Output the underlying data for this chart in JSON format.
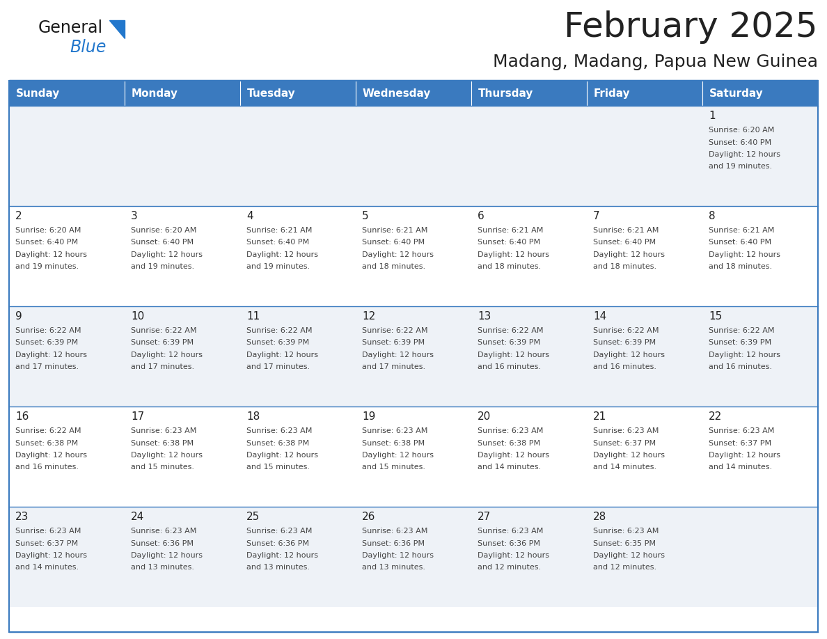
{
  "title": "February 2025",
  "subtitle": "Madang, Madang, Papua New Guinea",
  "header_bg": "#3a7abf",
  "header_text_color": "#ffffff",
  "days_of_week": [
    "Sunday",
    "Monday",
    "Tuesday",
    "Wednesday",
    "Thursday",
    "Friday",
    "Saturday"
  ],
  "row_bg_colors": [
    "#eef2f7",
    "#ffffff",
    "#eef2f7",
    "#ffffff",
    "#eef2f7"
  ],
  "border_color": "#3a7abf",
  "text_color": "#222222",
  "cell_text_color": "#444444",
  "title_fontsize": 36,
  "subtitle_fontsize": 18,
  "header_fontsize": 11,
  "day_num_fontsize": 11,
  "cell_text_fontsize": 8,
  "calendar_data": [
    [
      {
        "day": null,
        "text": ""
      },
      {
        "day": null,
        "text": ""
      },
      {
        "day": null,
        "text": ""
      },
      {
        "day": null,
        "text": ""
      },
      {
        "day": null,
        "text": ""
      },
      {
        "day": null,
        "text": ""
      },
      {
        "day": 1,
        "text": "Sunrise: 6:20 AM\nSunset: 6:40 PM\nDaylight: 12 hours\nand 19 minutes."
      }
    ],
    [
      {
        "day": 2,
        "text": "Sunrise: 6:20 AM\nSunset: 6:40 PM\nDaylight: 12 hours\nand 19 minutes."
      },
      {
        "day": 3,
        "text": "Sunrise: 6:20 AM\nSunset: 6:40 PM\nDaylight: 12 hours\nand 19 minutes."
      },
      {
        "day": 4,
        "text": "Sunrise: 6:21 AM\nSunset: 6:40 PM\nDaylight: 12 hours\nand 19 minutes."
      },
      {
        "day": 5,
        "text": "Sunrise: 6:21 AM\nSunset: 6:40 PM\nDaylight: 12 hours\nand 18 minutes."
      },
      {
        "day": 6,
        "text": "Sunrise: 6:21 AM\nSunset: 6:40 PM\nDaylight: 12 hours\nand 18 minutes."
      },
      {
        "day": 7,
        "text": "Sunrise: 6:21 AM\nSunset: 6:40 PM\nDaylight: 12 hours\nand 18 minutes."
      },
      {
        "day": 8,
        "text": "Sunrise: 6:21 AM\nSunset: 6:40 PM\nDaylight: 12 hours\nand 18 minutes."
      }
    ],
    [
      {
        "day": 9,
        "text": "Sunrise: 6:22 AM\nSunset: 6:39 PM\nDaylight: 12 hours\nand 17 minutes."
      },
      {
        "day": 10,
        "text": "Sunrise: 6:22 AM\nSunset: 6:39 PM\nDaylight: 12 hours\nand 17 minutes."
      },
      {
        "day": 11,
        "text": "Sunrise: 6:22 AM\nSunset: 6:39 PM\nDaylight: 12 hours\nand 17 minutes."
      },
      {
        "day": 12,
        "text": "Sunrise: 6:22 AM\nSunset: 6:39 PM\nDaylight: 12 hours\nand 17 minutes."
      },
      {
        "day": 13,
        "text": "Sunrise: 6:22 AM\nSunset: 6:39 PM\nDaylight: 12 hours\nand 16 minutes."
      },
      {
        "day": 14,
        "text": "Sunrise: 6:22 AM\nSunset: 6:39 PM\nDaylight: 12 hours\nand 16 minutes."
      },
      {
        "day": 15,
        "text": "Sunrise: 6:22 AM\nSunset: 6:39 PM\nDaylight: 12 hours\nand 16 minutes."
      }
    ],
    [
      {
        "day": 16,
        "text": "Sunrise: 6:22 AM\nSunset: 6:38 PM\nDaylight: 12 hours\nand 16 minutes."
      },
      {
        "day": 17,
        "text": "Sunrise: 6:23 AM\nSunset: 6:38 PM\nDaylight: 12 hours\nand 15 minutes."
      },
      {
        "day": 18,
        "text": "Sunrise: 6:23 AM\nSunset: 6:38 PM\nDaylight: 12 hours\nand 15 minutes."
      },
      {
        "day": 19,
        "text": "Sunrise: 6:23 AM\nSunset: 6:38 PM\nDaylight: 12 hours\nand 15 minutes."
      },
      {
        "day": 20,
        "text": "Sunrise: 6:23 AM\nSunset: 6:38 PM\nDaylight: 12 hours\nand 14 minutes."
      },
      {
        "day": 21,
        "text": "Sunrise: 6:23 AM\nSunset: 6:37 PM\nDaylight: 12 hours\nand 14 minutes."
      },
      {
        "day": 22,
        "text": "Sunrise: 6:23 AM\nSunset: 6:37 PM\nDaylight: 12 hours\nand 14 minutes."
      }
    ],
    [
      {
        "day": 23,
        "text": "Sunrise: 6:23 AM\nSunset: 6:37 PM\nDaylight: 12 hours\nand 14 minutes."
      },
      {
        "day": 24,
        "text": "Sunrise: 6:23 AM\nSunset: 6:36 PM\nDaylight: 12 hours\nand 13 minutes."
      },
      {
        "day": 25,
        "text": "Sunrise: 6:23 AM\nSunset: 6:36 PM\nDaylight: 12 hours\nand 13 minutes."
      },
      {
        "day": 26,
        "text": "Sunrise: 6:23 AM\nSunset: 6:36 PM\nDaylight: 12 hours\nand 13 minutes."
      },
      {
        "day": 27,
        "text": "Sunrise: 6:23 AM\nSunset: 6:36 PM\nDaylight: 12 hours\nand 12 minutes."
      },
      {
        "day": 28,
        "text": "Sunrise: 6:23 AM\nSunset: 6:35 PM\nDaylight: 12 hours\nand 12 minutes."
      },
      {
        "day": null,
        "text": ""
      }
    ]
  ],
  "logo_text_general": "General",
  "logo_text_blue": "Blue",
  "logo_color_general": "#1a1a1a",
  "logo_color_blue": "#2277cc",
  "logo_triangle_color": "#2277cc"
}
